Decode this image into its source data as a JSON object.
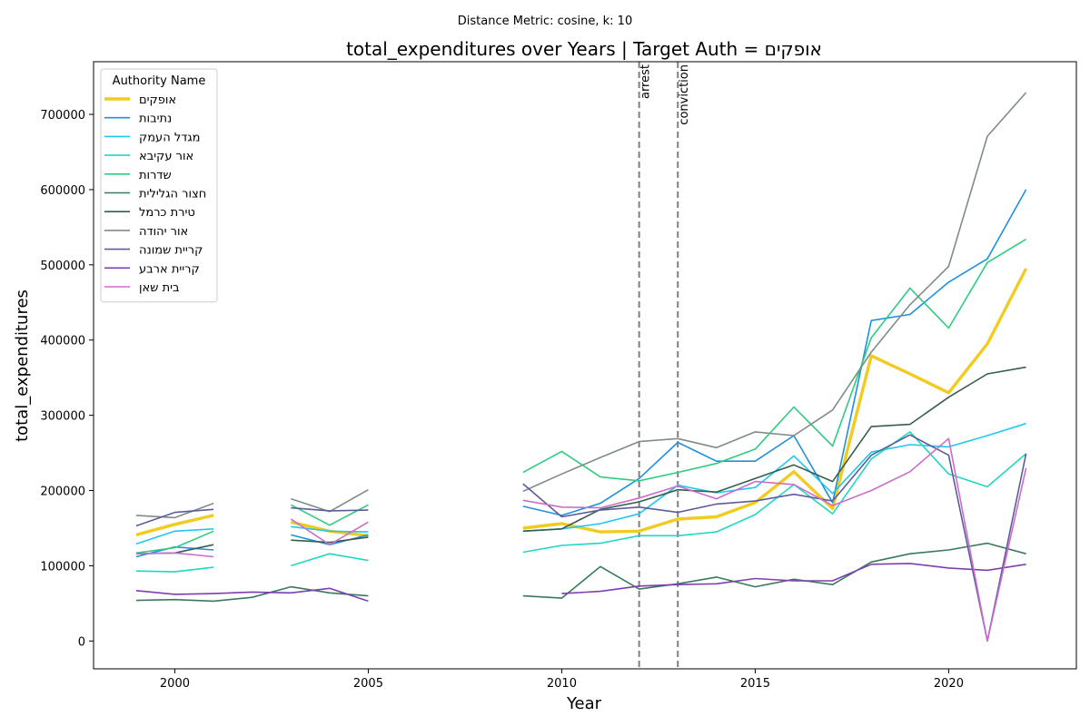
{
  "chart_data": {
    "type": "line",
    "suptitle": "Distance Metric: cosine, k: 10",
    "title": "total_expenditures over Years | Target Auth = אופקים",
    "xlabel": "Year",
    "ylabel": "total_expenditures",
    "xlim": [
      1997.9,
      2023.3
    ],
    "ylim": [
      -37000,
      770000
    ],
    "x_ticks": [
      2000,
      2005,
      2010,
      2015,
      2020
    ],
    "y_ticks": [
      0,
      100000,
      200000,
      300000,
      400000,
      500000,
      600000,
      700000
    ],
    "grid": false,
    "legend": {
      "title": "Authority Name",
      "placement": "top-left"
    },
    "vlines": [
      {
        "x": 2012,
        "label": "arrest",
        "color": "#808080"
      },
      {
        "x": 2013,
        "label": "conviction",
        "color": "#808080"
      }
    ],
    "x": [
      1999,
      2000,
      2001,
      2002,
      2003,
      2004,
      2005,
      2006,
      2007,
      2008,
      2009,
      2010,
      2011,
      2012,
      2013,
      2014,
      2015,
      2016,
      2017,
      2018,
      2019,
      2020,
      2021,
      2022
    ],
    "series": [
      {
        "name": "אופקים",
        "color": "#f2cb1f",
        "width": 3.4,
        "values": [
          141000,
          155000,
          167000,
          null,
          158000,
          146000,
          140000,
          null,
          null,
          null,
          150000,
          156000,
          145000,
          146000,
          162000,
          165000,
          184000,
          225000,
          176000,
          379000,
          355000,
          330000,
          395000,
          495000
        ]
      },
      {
        "name": "נתיבות",
        "color": "#1e90e0",
        "width": 1.6,
        "values": [
          112000,
          125000,
          121000,
          null,
          141000,
          128000,
          141000,
          null,
          null,
          null,
          179000,
          167000,
          183000,
          216000,
          264000,
          239000,
          239000,
          273000,
          184000,
          426000,
          434000,
          477000,
          508000,
          600000
        ]
      },
      {
        "name": "מגדל העמק",
        "color": "#1ec8f0",
        "width": 1.6,
        "values": [
          129000,
          146000,
          149000,
          null,
          152000,
          146000,
          145000,
          null,
          null,
          null,
          146000,
          149000,
          156000,
          169000,
          207000,
          197000,
          204000,
          246000,
          196000,
          251000,
          261000,
          258000,
          273000,
          289000
        ]
      },
      {
        "name": "אור עקיבא",
        "color": "#1ed8c0",
        "width": 1.6,
        "values": [
          93000,
          92000,
          98000,
          null,
          100000,
          116000,
          107000,
          null,
          null,
          null,
          118000,
          127000,
          130000,
          140000,
          140000,
          145000,
          168000,
          208000,
          169000,
          242000,
          278000,
          222000,
          205000,
          249000
        ]
      },
      {
        "name": "שדרות",
        "color": "#2ecc80",
        "width": 1.6,
        "values": [
          117000,
          124000,
          146000,
          null,
          181000,
          154000,
          181000,
          null,
          null,
          null,
          224000,
          252000,
          218000,
          213000,
          224000,
          236000,
          255000,
          311000,
          259000,
          403000,
          469000,
          416000,
          503000,
          534000
        ]
      },
      {
        "name": "חצור הגלילית",
        "color": "#3a7a5c",
        "width": 1.6,
        "values": [
          54000,
          55000,
          53000,
          58000,
          72000,
          64000,
          60000,
          null,
          null,
          null,
          60000,
          57000,
          99000,
          69000,
          76000,
          85000,
          72000,
          82000,
          75000,
          105000,
          116000,
          121000,
          130000,
          116000
        ]
      },
      {
        "name": "טירת כרמל",
        "color": "#355e4e",
        "width": 1.6,
        "values": [
          116000,
          117000,
          128000,
          null,
          134000,
          131000,
          138000,
          null,
          null,
          null,
          146000,
          149000,
          175000,
          185000,
          201000,
          198000,
          216000,
          234000,
          212000,
          285000,
          288000,
          324000,
          355000,
          364000
        ]
      },
      {
        "name": "אור יהודה",
        "color": "#7f8c8a",
        "width": 1.6,
        "values": [
          167000,
          164000,
          183000,
          null,
          189000,
          172000,
          201000,
          null,
          null,
          null,
          199000,
          222000,
          244000,
          265000,
          269000,
          257000,
          278000,
          273000,
          307000,
          384000,
          447000,
          498000,
          671000,
          729000
        ]
      },
      {
        "name": "קריית שמונה",
        "color": "#5c5c9c",
        "width": 1.6,
        "values": [
          153000,
          171000,
          175000,
          null,
          177000,
          173000,
          174000,
          null,
          null,
          null,
          209000,
          165000,
          174000,
          178000,
          171000,
          182000,
          186000,
          195000,
          186000,
          247000,
          274000,
          247000,
          0,
          249000
        ]
      },
      {
        "name": "קריית ארבע",
        "color": "#7d3fb0",
        "width": 1.6,
        "values": [
          67000,
          62000,
          63000,
          65000,
          64000,
          70000,
          53000,
          null,
          null,
          null,
          null,
          63000,
          66000,
          73000,
          75000,
          76000,
          83000,
          80000,
          80000,
          102000,
          103000,
          97000,
          94000,
          102000
        ]
      },
      {
        "name": "בית שאן",
        "color": "#cc6ccc",
        "width": 1.6,
        "values": [
          116000,
          117000,
          112000,
          null,
          162000,
          128000,
          158000,
          null,
          null,
          null,
          187000,
          178000,
          177000,
          190000,
          206000,
          189000,
          212000,
          208000,
          180000,
          200000,
          225000,
          269000,
          0,
          230000
        ]
      }
    ]
  }
}
